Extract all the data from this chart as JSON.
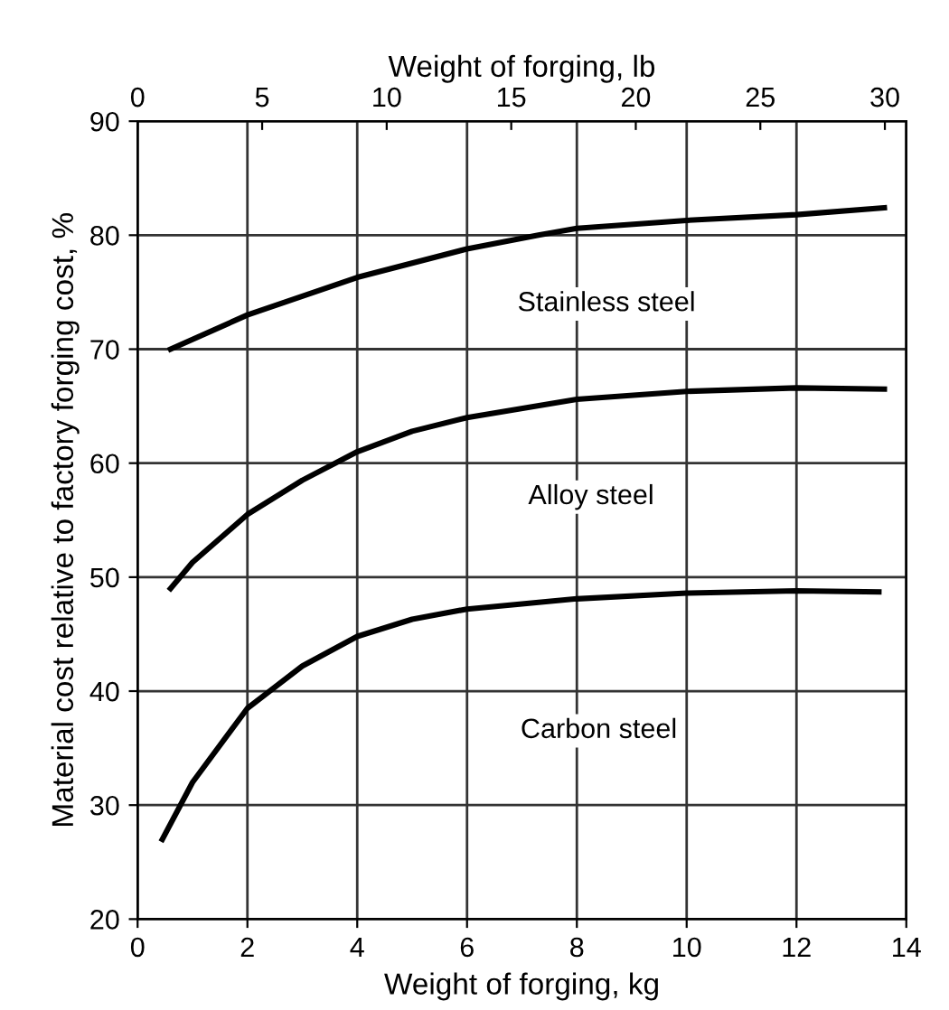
{
  "chart_data": {
    "type": "line",
    "xlabel": "Weight of forging, kg",
    "ylabel": "Material cost relative to factory forging cost, %",
    "x2label": "Weight of forging, lb",
    "xlim": [
      0,
      14
    ],
    "xticks": [
      0,
      2,
      4,
      6,
      8,
      10,
      12,
      14
    ],
    "ylim": [
      20,
      90
    ],
    "yticks": [
      20,
      30,
      40,
      50,
      60,
      70,
      80,
      90
    ],
    "x2lim": [
      0,
      30.86
    ],
    "x2ticks": [
      0,
      5,
      10,
      15,
      20,
      25,
      30
    ],
    "grid": true,
    "marker": "none",
    "line_style": "solid",
    "series": [
      {
        "color": "#000000",
        "x": [
          0.6,
          2,
          4,
          6,
          7.3,
          8,
          10,
          12,
          13.6
        ],
        "values": [
          70,
          73,
          76.3,
          78.8,
          80,
          80.6,
          81.3,
          81.8,
          82.4
        ]
      },
      {
        "color": "#000000",
        "x": [
          0.6,
          1,
          2,
          3,
          4,
          5,
          6,
          8,
          10,
          12,
          13.6
        ],
        "values": [
          49,
          51.3,
          55.5,
          58.5,
          61,
          62.8,
          64,
          65.6,
          66.3,
          66.6,
          66.5
        ]
      },
      {
        "color": "#000000",
        "x": [
          0.45,
          1,
          2,
          3,
          4,
          5,
          6,
          8,
          10,
          12,
          13.5
        ],
        "values": [
          27,
          32,
          38.5,
          42.2,
          44.8,
          46.3,
          47.2,
          48.1,
          48.6,
          48.8,
          48.7
        ]
      }
    ],
    "annotations": [
      "Stainless steel",
      "Alloy steel",
      "Carbon steel"
    ]
  }
}
